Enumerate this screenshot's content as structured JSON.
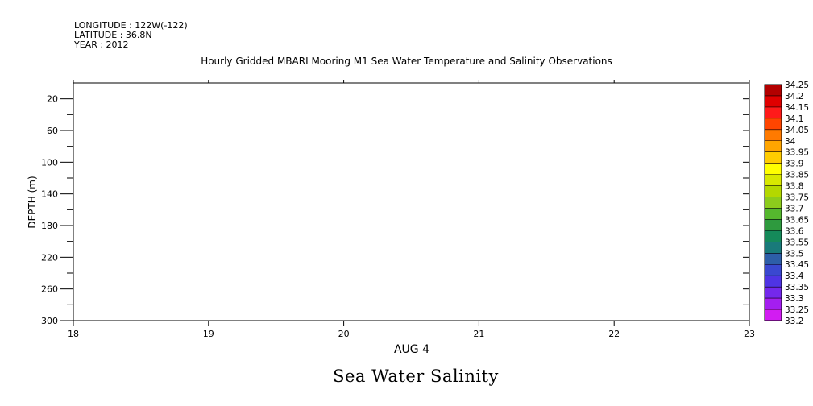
{
  "header": {
    "longitude": "LONGITUDE : 122W(-122)",
    "latitude": "LATITUDE : 36.8N",
    "year": "YEAR : 2012"
  },
  "chart_data": {
    "type": "heatmap",
    "title": "Hourly Gridded MBARI Mooring M1 Sea Water Temperature and Salinity Observations",
    "subtitle": "Sea Water Salinity",
    "xlabel": "AUG 4",
    "ylabel": "DEPTH (m)",
    "x_ticks": [
      "18",
      "19",
      "20",
      "21",
      "22",
      "23"
    ],
    "xlim": [
      18,
      23
    ],
    "ylim": [
      300,
      0
    ],
    "y_ticks": [
      20,
      60,
      100,
      140,
      180,
      220,
      260,
      300
    ],
    "y_minor_ticks": [
      40,
      80,
      120,
      160,
      200,
      240,
      280
    ],
    "y_reversed": true,
    "grid": false,
    "values": [],
    "colorbar": {
      "levels": [
        "34.25",
        "34.2",
        "34.15",
        "34.1",
        "34.05",
        "34",
        "33.95",
        "33.9",
        "33.85",
        "33.8",
        "33.75",
        "33.7",
        "33.65",
        "33.6",
        "33.55",
        "33.5",
        "33.45",
        "33.4",
        "33.35",
        "33.3",
        "33.25",
        "33.2"
      ],
      "colors": [
        "#8b0000",
        "#b30000",
        "#e00000",
        "#ff1a1a",
        "#ff4500",
        "#ff7a00",
        "#ffa500",
        "#ffcc00",
        "#ffff00",
        "#d8e800",
        "#b4d800",
        "#8ccc1c",
        "#55b82e",
        "#2e9a3e",
        "#158a5a",
        "#197a7a",
        "#2d5ea8",
        "#3a48d0",
        "#4f34e4",
        "#7428ec",
        "#a41ef0",
        "#d21cf2"
      ]
    }
  }
}
